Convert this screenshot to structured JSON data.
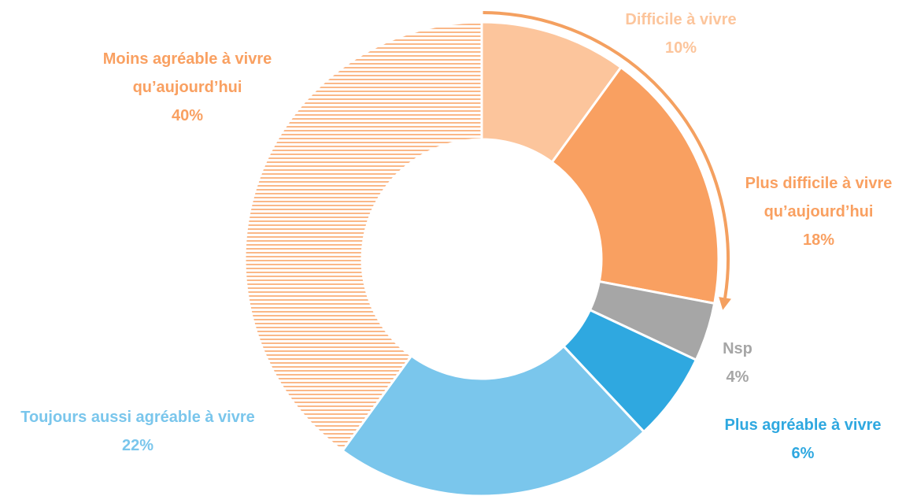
{
  "chart_data": {
    "type": "donut",
    "categories": [
      "Difficile à vivre",
      "Plus difficile à vivre qu’aujourd’hui",
      "Nsp",
      "Plus agréable à vivre",
      "Toujours aussi agréable à vivre",
      "Moins agréable à vivre qu’aujourd’hui"
    ],
    "values": [
      10,
      18,
      4,
      6,
      22,
      40
    ],
    "value_labels": [
      "10%",
      "18%",
      "4%",
      "6%",
      "22%",
      "40%"
    ],
    "colors": [
      "#fcc59c",
      "#f9a061",
      "#a6a6a6",
      "#2fa8e0",
      "#7ac6ec",
      "#f9a061"
    ],
    "hatched": [
      false,
      false,
      false,
      false,
      false,
      true
    ]
  }
}
